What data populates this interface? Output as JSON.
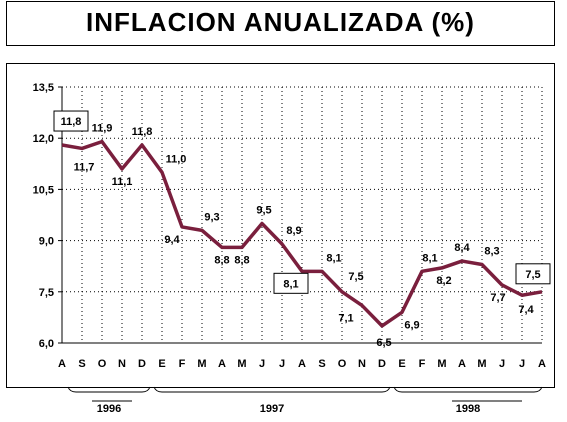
{
  "chart_data": {
    "type": "line",
    "title": "INFLACION ANUALIZADA (%)",
    "xlabel": "",
    "ylabel": "",
    "ylim": [
      6.0,
      13.5
    ],
    "yticks": [
      "6,0",
      "7,5",
      "9,0",
      "10,5",
      "12,0",
      "13,5"
    ],
    "grid": true,
    "x": [
      "A",
      "S",
      "O",
      "N",
      "D",
      "E",
      "F",
      "M",
      "A",
      "M",
      "J",
      "J",
      "A",
      "S",
      "O",
      "N",
      "D",
      "E",
      "F",
      "M",
      "A",
      "M",
      "J",
      "J",
      "A"
    ],
    "years": [
      {
        "label": "1996",
        "from": 0,
        "to": 4
      },
      {
        "label": "1997",
        "from": 5,
        "to": 16
      },
      {
        "label": "1998",
        "from": 17,
        "to": 24
      }
    ],
    "series": [
      {
        "color": "#7a1f3d",
        "values": [
          11.8,
          11.7,
          11.9,
          11.1,
          11.8,
          11.0,
          9.4,
          9.3,
          8.8,
          8.8,
          9.5,
          8.9,
          8.1,
          8.1,
          7.5,
          7.1,
          6.5,
          6.9,
          8.1,
          8.2,
          8.4,
          8.3,
          7.7,
          7.4,
          7.5
        ],
        "labels": [
          "11,8",
          "11,7",
          "11,9",
          "11,1",
          "11,8",
          "11,0",
          "9,4",
          "9,3",
          "8,8",
          "8,8",
          "9,5",
          "8,9",
          "8,1",
          "8,1",
          "7,5",
          "7,1",
          "6,5",
          "6,9",
          "8,1",
          "8,2",
          "8,4",
          "8,3",
          "7,7",
          "7,4",
          "7,5"
        ]
      }
    ],
    "boxed_labels": [
      0,
      12,
      24
    ]
  }
}
